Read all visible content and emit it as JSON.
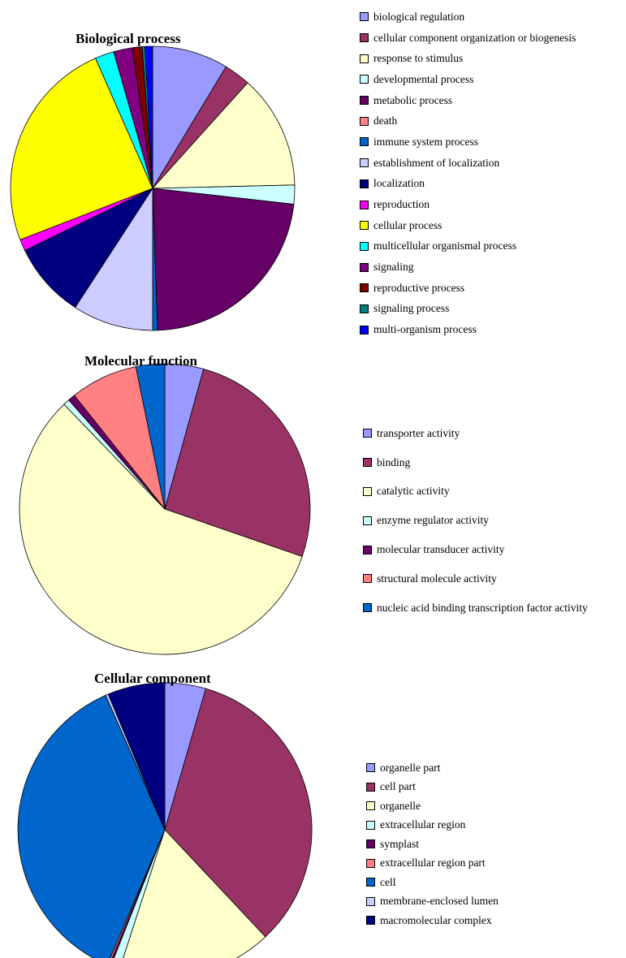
{
  "chart_data": [
    {
      "type": "pie",
      "title": "Biological process",
      "legend_position": "right",
      "slices": [
        {
          "label": "biological regulation",
          "value": 8.0,
          "color": "#9999ff"
        },
        {
          "label": "cellular component organization or biogenesis",
          "value": 2.8,
          "color": "#993366"
        },
        {
          "label": "response to stimulus",
          "value": 12.0,
          "color": "#ffffcc"
        },
        {
          "label": "developmental process",
          "value": 2.0,
          "color": "#ccffff"
        },
        {
          "label": "metabolic process",
          "value": 21.0,
          "color": "#660066"
        },
        {
          "label": "death",
          "value": 0.0,
          "color": "#ff8080"
        },
        {
          "label": "immune system process",
          "value": 0.5,
          "color": "#0066cc"
        },
        {
          "label": "establishment of localization",
          "value": 8.5,
          "color": "#ccccff"
        },
        {
          "label": "localization",
          "value": 8.0,
          "color": "#000080"
        },
        {
          "label": "reproduction",
          "value": 1.2,
          "color": "#ff00ff"
        },
        {
          "label": "cellular process",
          "value": 22.5,
          "color": "#ffff00"
        },
        {
          "label": "multicellular organismal process",
          "value": 2.0,
          "color": "#00ffff"
        },
        {
          "label": "signaling",
          "value": 2.0,
          "color": "#800080"
        },
        {
          "label": "reproductive process",
          "value": 1.0,
          "color": "#800000"
        },
        {
          "label": "signaling process",
          "value": 0.3,
          "color": "#008080"
        },
        {
          "label": "multi-organism process",
          "value": 0.8,
          "color": "#0000ff"
        }
      ]
    },
    {
      "type": "pie",
      "title": "Molecular function",
      "legend_position": "right",
      "slices": [
        {
          "label": "transporter activity",
          "value": 4.3,
          "color": "#9999ff"
        },
        {
          "label": "binding",
          "value": 26.0,
          "color": "#993366"
        },
        {
          "label": "catalytic activity",
          "value": 57.5,
          "color": "#ffffcc"
        },
        {
          "label": "enzyme regulator activity",
          "value": 0.7,
          "color": "#ccffff"
        },
        {
          "label": "molecular transducer activity",
          "value": 0.8,
          "color": "#660066"
        },
        {
          "label": "structural molecule activity",
          "value": 7.5,
          "color": "#ff8080"
        },
        {
          "label": "nucleic acid binding transcription factor activity",
          "value": 3.2,
          "color": "#0066cc"
        }
      ]
    },
    {
      "type": "pie",
      "title": "Cellular component",
      "legend_position": "right",
      "slices": [
        {
          "label": "organelle part",
          "value": 4.5,
          "color": "#9999ff"
        },
        {
          "label": "cell part",
          "value": 33.5,
          "color": "#993366"
        },
        {
          "label": "organelle",
          "value": 17.0,
          "color": "#ffffcc"
        },
        {
          "label": "extracellular region",
          "value": 1.0,
          "color": "#ccffff"
        },
        {
          "label": "symplast",
          "value": 0.2,
          "color": "#660066"
        },
        {
          "label": "extracellular region part",
          "value": 0.2,
          "color": "#ff8080"
        },
        {
          "label": "cell",
          "value": 37.0,
          "color": "#0066cc"
        },
        {
          "label": "membrane-enclosed lumen",
          "value": 0.3,
          "color": "#ccccff"
        },
        {
          "label": "macromolecular complex",
          "value": 6.3,
          "color": "#000080"
        }
      ]
    }
  ]
}
